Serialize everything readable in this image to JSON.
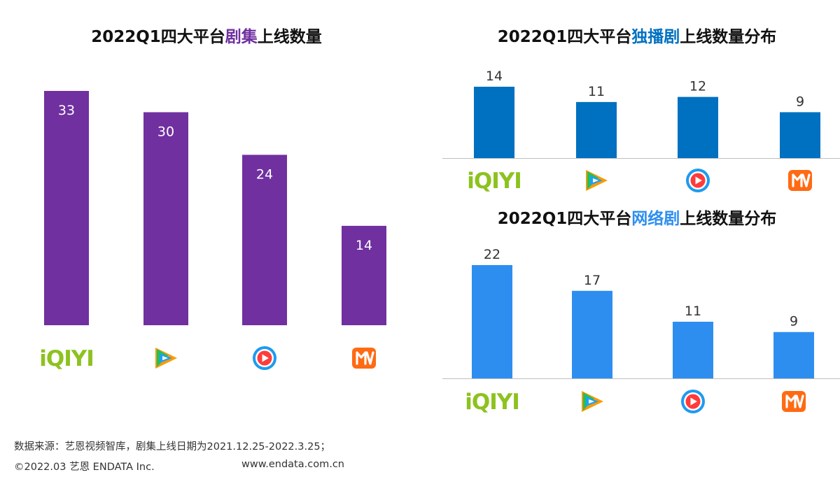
{
  "colors": {
    "purple": "#7030A0",
    "dark_blue": "#0070C0",
    "light_blue": "#2E8EF0",
    "iqiyi_green": "#8DC21F",
    "youku_blue": "#1E9BF0",
    "mango_orange": "#FF6A13",
    "tencent_blue": "#1DA1F2",
    "tencent_green": "#20C060",
    "tencent_orange": "#FF9A00"
  },
  "platforms": [
    {
      "name": "iqiyi",
      "icon": "iqiyi-logo-icon",
      "logo_text": "iQIYI"
    },
    {
      "name": "tencent",
      "icon": "tencent-video-logo-icon"
    },
    {
      "name": "youku",
      "icon": "youku-logo-icon"
    },
    {
      "name": "mango",
      "icon": "mango-tv-logo-icon"
    }
  ],
  "chart_data": [
    {
      "type": "bar",
      "title": {
        "pre": "2022Q1四大平台",
        "highlight": "剧集",
        "post": "上线数量"
      },
      "highlight_color": "#7030A0",
      "bar_color": "#7030A0",
      "label_position": "inside",
      "categories": [
        "iqiyi",
        "tencent",
        "youku",
        "mango"
      ],
      "values": [
        33,
        30,
        24,
        14
      ],
      "ylim": [
        0,
        33
      ]
    },
    {
      "type": "bar",
      "title": {
        "pre": "2022Q1四大平台",
        "highlight": "独播剧",
        "post": "上线数量分布"
      },
      "highlight_color": "#0070C0",
      "bar_color": "#0070C0",
      "label_position": "above",
      "categories": [
        "iqiyi",
        "tencent",
        "youku",
        "mango"
      ],
      "values": [
        14,
        11,
        12,
        9
      ],
      "ylim": [
        0,
        14
      ]
    },
    {
      "type": "bar",
      "title": {
        "pre": "2022Q1四大平台",
        "highlight": "网络剧",
        "post": "上线数量分布"
      },
      "highlight_color": "#2E8EF0",
      "bar_color": "#2E8EF0",
      "label_position": "above",
      "categories": [
        "iqiyi",
        "tencent",
        "youku",
        "mango"
      ],
      "values": [
        22,
        17,
        11,
        9
      ],
      "ylim": [
        0,
        22
      ]
    }
  ],
  "footer": {
    "source": "数据来源：艺恩视频智库，剧集上线日期为2021.12.25-2022.3.25；",
    "copyright": "©2022.03 艺恩 ENDATA Inc.",
    "website": "www.endata.com.cn"
  }
}
